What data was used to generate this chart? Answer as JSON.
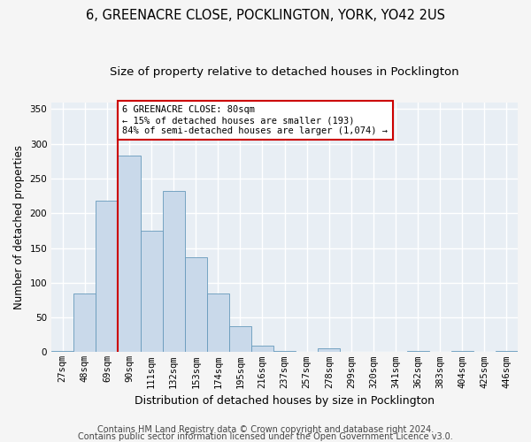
{
  "title_line1": "6, GREENACRE CLOSE, POCKLINGTON, YORK, YO42 2US",
  "title_line2": "Size of property relative to detached houses in Pocklington",
  "xlabel": "Distribution of detached houses by size in Pocklington",
  "ylabel": "Number of detached properties",
  "categories": [
    "27sqm",
    "48sqm",
    "69sqm",
    "90sqm",
    "111sqm",
    "132sqm",
    "153sqm",
    "174sqm",
    "195sqm",
    "216sqm",
    "237sqm",
    "257sqm",
    "278sqm",
    "299sqm",
    "320sqm",
    "341sqm",
    "362sqm",
    "383sqm",
    "404sqm",
    "425sqm",
    "446sqm"
  ],
  "values": [
    2,
    85,
    218,
    283,
    175,
    232,
    137,
    85,
    38,
    10,
    2,
    0,
    5,
    0,
    0,
    0,
    2,
    0,
    2,
    0,
    2
  ],
  "bar_color": "#c9d9ea",
  "bar_edgecolor": "#6699bb",
  "vline_color": "#cc0000",
  "vline_x_index": 2,
  "annotation_text": "6 GREENACRE CLOSE: 80sqm\n← 15% of detached houses are smaller (193)\n84% of semi-detached houses are larger (1,074) →",
  "annotation_box_facecolor": "#ffffff",
  "annotation_box_edgecolor": "#cc0000",
  "ylim": [
    0,
    360
  ],
  "yticks": [
    0,
    50,
    100,
    150,
    200,
    250,
    300,
    350
  ],
  "plot_bg_color": "#e8eef4",
  "fig_bg_color": "#f5f5f5",
  "grid_color": "#ffffff",
  "title_fontsize": 10.5,
  "subtitle_fontsize": 9.5,
  "tick_fontsize": 7.5,
  "ylabel_fontsize": 8.5,
  "xlabel_fontsize": 9,
  "annotation_fontsize": 7.5,
  "footer_fontsize": 7,
  "footer_line1": "Contains HM Land Registry data © Crown copyright and database right 2024.",
  "footer_line2": "Contains public sector information licensed under the Open Government Licence v3.0."
}
